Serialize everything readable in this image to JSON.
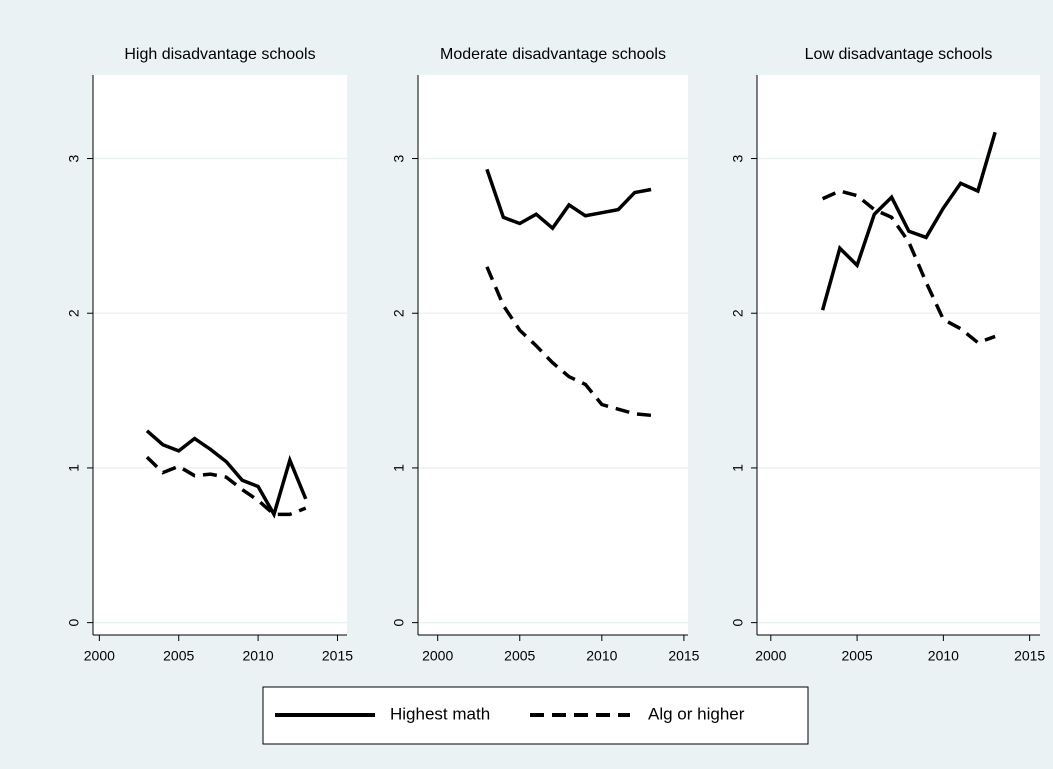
{
  "chart_data": [
    {
      "type": "line",
      "title": "High disadvantage schools",
      "x": [
        2003,
        2004,
        2005,
        2006,
        2007,
        2008,
        2009,
        2010,
        2011,
        2012,
        2013
      ],
      "series": [
        {
          "name": "Highest math",
          "color": "#000000",
          "line_style": "solid",
          "values": [
            1.24,
            1.15,
            1.11,
            1.19,
            1.12,
            1.04,
            0.92,
            0.88,
            0.7,
            1.05,
            0.8
          ]
        },
        {
          "name": "Alg or higher",
          "color": "#000000",
          "line_style": "dash",
          "values": [
            1.07,
            0.97,
            1.01,
            0.95,
            0.96,
            0.94,
            0.86,
            0.79,
            0.7,
            0.7,
            0.74
          ]
        }
      ],
      "xlim": [
        1999.6,
        2015.6
      ],
      "ylim": [
        -0.08,
        3.54
      ],
      "xticks": [
        2000,
        2005,
        2010,
        2015
      ],
      "yticks": [
        0,
        1,
        2,
        3
      ],
      "grid": true
    },
    {
      "type": "line",
      "title": "Moderate disadvantage schools",
      "x": [
        2003,
        2004,
        2005,
        2006,
        2007,
        2008,
        2009,
        2010,
        2011,
        2012,
        2013
      ],
      "series": [
        {
          "color": "#000000",
          "line_style": "solid",
          "values": [
            2.93,
            2.62,
            2.58,
            2.64,
            2.55,
            2.7,
            2.63,
            2.65,
            2.67,
            2.78,
            2.8
          ]
        },
        {
          "color": "#000000",
          "line_style": "dash",
          "values": [
            2.3,
            2.05,
            1.89,
            1.79,
            1.68,
            1.59,
            1.54,
            1.41,
            1.38,
            1.35,
            1.34
          ]
        }
      ],
      "xlim": [
        1998.8,
        2015.25
      ],
      "ylim": [
        -0.08,
        3.54
      ],
      "xticks": [
        2000,
        2005,
        2010,
        2015
      ],
      "yticks": [
        0,
        1,
        2,
        3
      ],
      "grid": true
    },
    {
      "type": "line",
      "title": "Low disadvantage schools",
      "x": [
        2003,
        2004,
        2005,
        2006,
        2007,
        2008,
        2009,
        2010,
        2011,
        2012,
        2013
      ],
      "series": [
        {
          "color": "#000000",
          "line_style": "solid",
          "values": [
            2.02,
            2.42,
            2.31,
            2.64,
            2.75,
            2.53,
            2.49,
            2.68,
            2.84,
            2.79,
            3.17
          ]
        },
        {
          "color": "#000000",
          "line_style": "dash",
          "values": [
            2.74,
            2.79,
            2.76,
            2.67,
            2.62,
            2.46,
            2.2,
            1.96,
            1.9,
            1.81,
            1.85
          ]
        }
      ],
      "xlim": [
        1999.2,
        2015.6
      ],
      "ylim": [
        -0.08,
        3.54
      ],
      "xticks": [
        2000,
        2005,
        2010,
        2015
      ],
      "yticks": [
        0,
        1,
        2,
        3
      ],
      "grid": true
    }
  ]
}
